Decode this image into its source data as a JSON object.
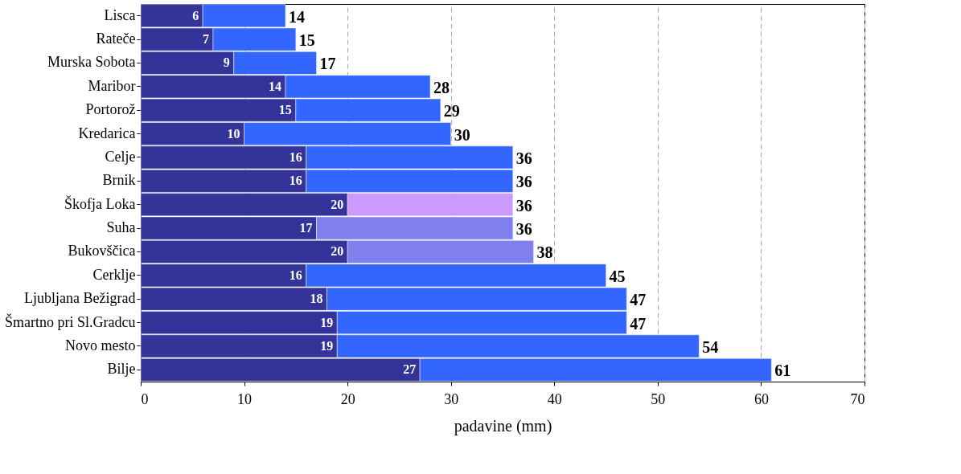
{
  "chart_data": {
    "type": "bar",
    "orientation": "horizontal",
    "stacked": true,
    "xlabel": "padavine (mm)",
    "categories": [
      "Lisca",
      "Rateče",
      "Murska Sobota",
      "Maribor",
      "Portorož",
      "Kredarica",
      "Celje",
      "Brnik",
      "Škofja Loka",
      "Suha",
      "Bukovščica",
      "Cerklje",
      "Ljubljana Bežigrad",
      "Šmartno pri Sl.Gradcu",
      "Novo mesto",
      "Bilje"
    ],
    "series": [
      {
        "color": "#333399",
        "values": [
          6,
          7,
          9,
          14,
          15,
          10,
          16,
          16,
          20,
          17,
          20,
          16,
          18,
          19,
          19,
          27
        ],
        "value_labels": [
          "6",
          "7",
          "9",
          "14",
          "15",
          "10",
          "16",
          "16",
          "20",
          "17",
          "20",
          "16",
          "18",
          "19",
          "19",
          "27"
        ]
      },
      {
        "color": "#3366ff",
        "colors": [
          null,
          null,
          null,
          null,
          null,
          null,
          null,
          null,
          "#cc99ff",
          "#7f7fee",
          "#7f7fee",
          null,
          null,
          null,
          null,
          null
        ],
        "values": [
          8,
          8,
          8,
          14,
          14,
          20,
          20,
          20,
          16,
          19,
          18,
          29,
          29,
          28,
          35,
          34
        ]
      }
    ],
    "totals": [
      "14",
      "15",
      "17",
      "28",
      "29",
      "30",
      "36",
      "36",
      "36",
      "36",
      "38",
      "45",
      "47",
      "47",
      "54",
      "61"
    ],
    "xlim": [
      0,
      70
    ],
    "xticks": [
      0,
      10,
      20,
      30,
      40,
      50,
      60,
      70
    ],
    "grid": "x"
  }
}
